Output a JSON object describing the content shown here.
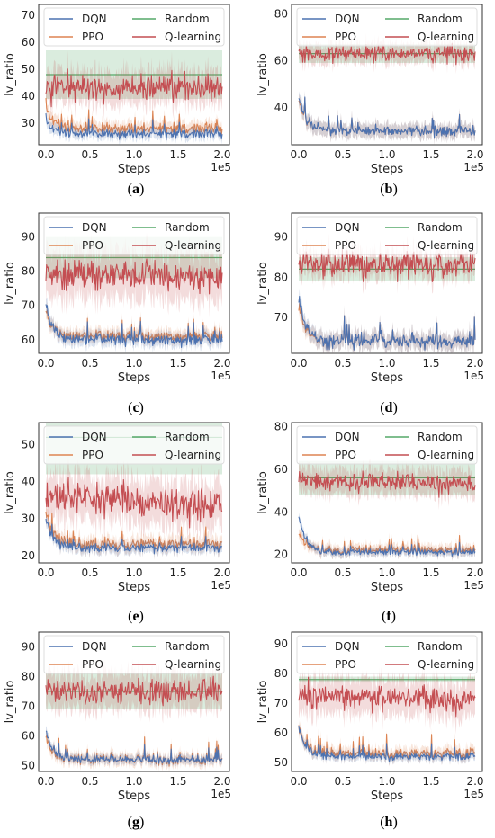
{
  "colors": {
    "DQN": "#4c72b0",
    "PPO": "#dd8452",
    "Random": "#55a868",
    "Q-learning": "#c44e52"
  },
  "chart_data": [
    {
      "type": "line",
      "caption": "a",
      "xlabel": "Steps",
      "ylabel": "lv_ratio",
      "x_multiplier": "1e5",
      "xlim": [
        0,
        2.0
      ],
      "ylim": [
        22,
        74
      ],
      "xticks": [
        "0.0",
        "0.5",
        "1.0",
        "1.5",
        "2.0"
      ],
      "xtick_values": [
        0,
        0.5,
        1.0,
        1.5,
        2.0
      ],
      "yticks": [
        "30",
        "40",
        "50",
        "60",
        "70"
      ],
      "ytick_values": [
        30,
        40,
        50,
        60,
        70
      ],
      "grid": false,
      "legend": "top, 2 columns",
      "series": [
        {
          "name": "DQN",
          "start": 31,
          "end": 26,
          "noise": 1.2,
          "band": 2
        },
        {
          "name": "PPO",
          "start": 36,
          "end": 28,
          "noise": 1.5,
          "band": 2.5
        },
        {
          "name": "Random",
          "start": 48,
          "end": 48,
          "noise": 0,
          "band": 9
        },
        {
          "name": "Q-learning",
          "start": 43,
          "end": 43,
          "noise": 3.5,
          "band": 6
        }
      ]
    },
    {
      "type": "line",
      "caption": "b",
      "xlabel": "Steps",
      "ylabel": "lv_ratio",
      "x_multiplier": "1e5",
      "xlim": [
        0,
        2.0
      ],
      "ylim": [
        24,
        84
      ],
      "xticks": [
        "0.0",
        "0.5",
        "1.0",
        "1.5",
        "2.0"
      ],
      "xtick_values": [
        0,
        0.5,
        1.0,
        1.5,
        2.0
      ],
      "yticks": [
        "40",
        "60",
        "80"
      ],
      "ytick_values": [
        40,
        60,
        80
      ],
      "grid": false,
      "legend": "top, 2 columns",
      "series": [
        {
          "name": "DQN",
          "start": 45,
          "end": 30,
          "noise": 1.5,
          "band": 3
        },
        {
          "name": "PPO",
          "start": 44,
          "end": 30,
          "noise": 1.5,
          "band": 3
        },
        {
          "name": "Random",
          "start": 63,
          "end": 63,
          "noise": 0,
          "band": 4
        },
        {
          "name": "Q-learning",
          "start": 63,
          "end": 63,
          "noise": 2.5,
          "band": 4
        }
      ]
    },
    {
      "type": "line",
      "caption": "c",
      "xlabel": "Steps",
      "ylabel": "lv_ratio",
      "x_multiplier": "1e5",
      "xlim": [
        0,
        2.0
      ],
      "ylim": [
        56,
        97
      ],
      "xticks": [
        "0.0",
        "0.5",
        "1.0",
        "1.5",
        "2.0"
      ],
      "xtick_values": [
        0,
        0.5,
        1.0,
        1.5,
        2.0
      ],
      "yticks": [
        "60",
        "70",
        "80",
        "90"
      ],
      "ytick_values": [
        60,
        70,
        80,
        90
      ],
      "grid": false,
      "legend": "top, 2 columns",
      "series": [
        {
          "name": "DQN",
          "start": 70,
          "end": 60,
          "noise": 1.2,
          "band": 2
        },
        {
          "name": "PPO",
          "start": 68,
          "end": 61,
          "noise": 1.2,
          "band": 2
        },
        {
          "name": "Random",
          "start": 84,
          "end": 84,
          "noise": 0,
          "band": 6
        },
        {
          "name": "Q-learning",
          "start": 80,
          "end": 78,
          "noise": 3,
          "band": 7
        }
      ]
    },
    {
      "type": "line",
      "caption": "d",
      "xlabel": "Steps",
      "ylabel": "lv_ratio",
      "x_multiplier": "1e5",
      "xlim": [
        0,
        2.0
      ],
      "ylim": [
        61,
        96
      ],
      "xticks": [
        "0.0",
        "0.5",
        "1.0",
        "1.5",
        "2.0"
      ],
      "xtick_values": [
        0,
        0.5,
        1.0,
        1.5,
        2.0
      ],
      "yticks": [
        "70",
        "80",
        "90"
      ],
      "ytick_values": [
        70,
        80,
        90
      ],
      "grid": false,
      "legend": "top, 2 columns",
      "series": [
        {
          "name": "DQN",
          "start": 75,
          "end": 64,
          "noise": 1.2,
          "band": 2
        },
        {
          "name": "PPO",
          "start": 73,
          "end": 64,
          "noise": 1.2,
          "band": 2
        },
        {
          "name": "Random",
          "start": 82,
          "end": 82,
          "noise": 0,
          "band": 3
        },
        {
          "name": "Q-learning",
          "start": 83,
          "end": 83,
          "noise": 2.5,
          "band": 3
        }
      ]
    },
    {
      "type": "line",
      "caption": "e",
      "xlabel": "Steps",
      "ylabel": "lv_ratio",
      "x_multiplier": "1e5",
      "xlim": [
        0,
        2.0
      ],
      "ylim": [
        18,
        56
      ],
      "xticks": [
        "0.0",
        "0.5",
        "1.0",
        "1.5",
        "2.0"
      ],
      "xtick_values": [
        0,
        0.5,
        1.0,
        1.5,
        2.0
      ],
      "yticks": [
        "20",
        "30",
        "40",
        "50"
      ],
      "ytick_values": [
        20,
        30,
        40,
        50
      ],
      "grid": false,
      "legend": "top, 2 columns",
      "series": [
        {
          "name": "DQN",
          "start": 30,
          "end": 22,
          "noise": 0.8,
          "band": 1.5
        },
        {
          "name": "PPO",
          "start": 32,
          "end": 23,
          "noise": 1.2,
          "band": 2
        },
        {
          "name": "Random",
          "start": 52,
          "end": 52,
          "noise": 0,
          "band": 10
        },
        {
          "name": "Q-learning",
          "start": 36,
          "end": 33,
          "noise": 3,
          "band": 6
        }
      ]
    },
    {
      "type": "line",
      "caption": "f",
      "xlabel": "Steps",
      "ylabel": "lv_ratio",
      "x_multiplier": "1e5",
      "xlim": [
        0,
        2.0
      ],
      "ylim": [
        16,
        82
      ],
      "xticks": [
        "0.0",
        "0.5",
        "1.0",
        "1.5",
        "2.0"
      ],
      "xtick_values": [
        0,
        0.5,
        1.0,
        1.5,
        2.0
      ],
      "yticks": [
        "20",
        "40",
        "60",
        "80"
      ],
      "ytick_values": [
        20,
        40,
        60,
        80
      ],
      "grid": false,
      "legend": "top, 2 columns",
      "series": [
        {
          "name": "DQN",
          "start": 38,
          "end": 21,
          "noise": 1,
          "band": 2
        },
        {
          "name": "PPO",
          "start": 30,
          "end": 22,
          "noise": 1.5,
          "band": 2.5
        },
        {
          "name": "Random",
          "start": 56,
          "end": 56,
          "noise": 0,
          "band": 8
        },
        {
          "name": "Q-learning",
          "start": 55,
          "end": 53,
          "noise": 3,
          "band": 6
        }
      ]
    },
    {
      "type": "line",
      "caption": "g",
      "xlabel": "Steps",
      "ylabel": "lv_ratio",
      "x_multiplier": "1e5",
      "xlim": [
        0,
        2.0
      ],
      "ylim": [
        48,
        95
      ],
      "xticks": [
        "0.0",
        "0.5",
        "1.0",
        "1.5",
        "2.0"
      ],
      "xtick_values": [
        0,
        0.5,
        1.0,
        1.5,
        2.0
      ],
      "yticks": [
        "50",
        "60",
        "70",
        "80",
        "90"
      ],
      "ytick_values": [
        50,
        60,
        70,
        80,
        90
      ],
      "grid": false,
      "legend": "top, 2 columns",
      "series": [
        {
          "name": "DQN",
          "start": 62,
          "end": 52,
          "noise": 0.8,
          "band": 1.5
        },
        {
          "name": "PPO",
          "start": 60,
          "end": 52,
          "noise": 1.2,
          "band": 2
        },
        {
          "name": "Random",
          "start": 75,
          "end": 75,
          "noise": 0,
          "band": 6
        },
        {
          "name": "Q-learning",
          "start": 75,
          "end": 75,
          "noise": 3,
          "band": 6
        }
      ]
    },
    {
      "type": "line",
      "caption": "h",
      "xlabel": "Steps",
      "ylabel": "lv_ratio",
      "x_multiplier": "1e5",
      "xlim": [
        0,
        2.0
      ],
      "ylim": [
        47,
        94
      ],
      "xticks": [
        "0.0",
        "0.5",
        "1.0",
        "1.5",
        "2.0"
      ],
      "xtick_values": [
        0,
        0.5,
        1.0,
        1.5,
        2.0
      ],
      "yticks": [
        "50",
        "60",
        "70",
        "80",
        "90"
      ],
      "ytick_values": [
        50,
        60,
        70,
        80,
        90
      ],
      "grid": false,
      "legend": "top, 2 columns",
      "series": [
        {
          "name": "DQN",
          "start": 62,
          "end": 52,
          "noise": 0.8,
          "band": 1.5
        },
        {
          "name": "PPO",
          "start": 62,
          "end": 53,
          "noise": 1.2,
          "band": 2
        },
        {
          "name": "Random",
          "start": 78,
          "end": 78,
          "noise": 0,
          "band": 1
        },
        {
          "name": "Q-learning",
          "start": 73,
          "end": 71,
          "noise": 3,
          "band": 6
        }
      ]
    }
  ]
}
